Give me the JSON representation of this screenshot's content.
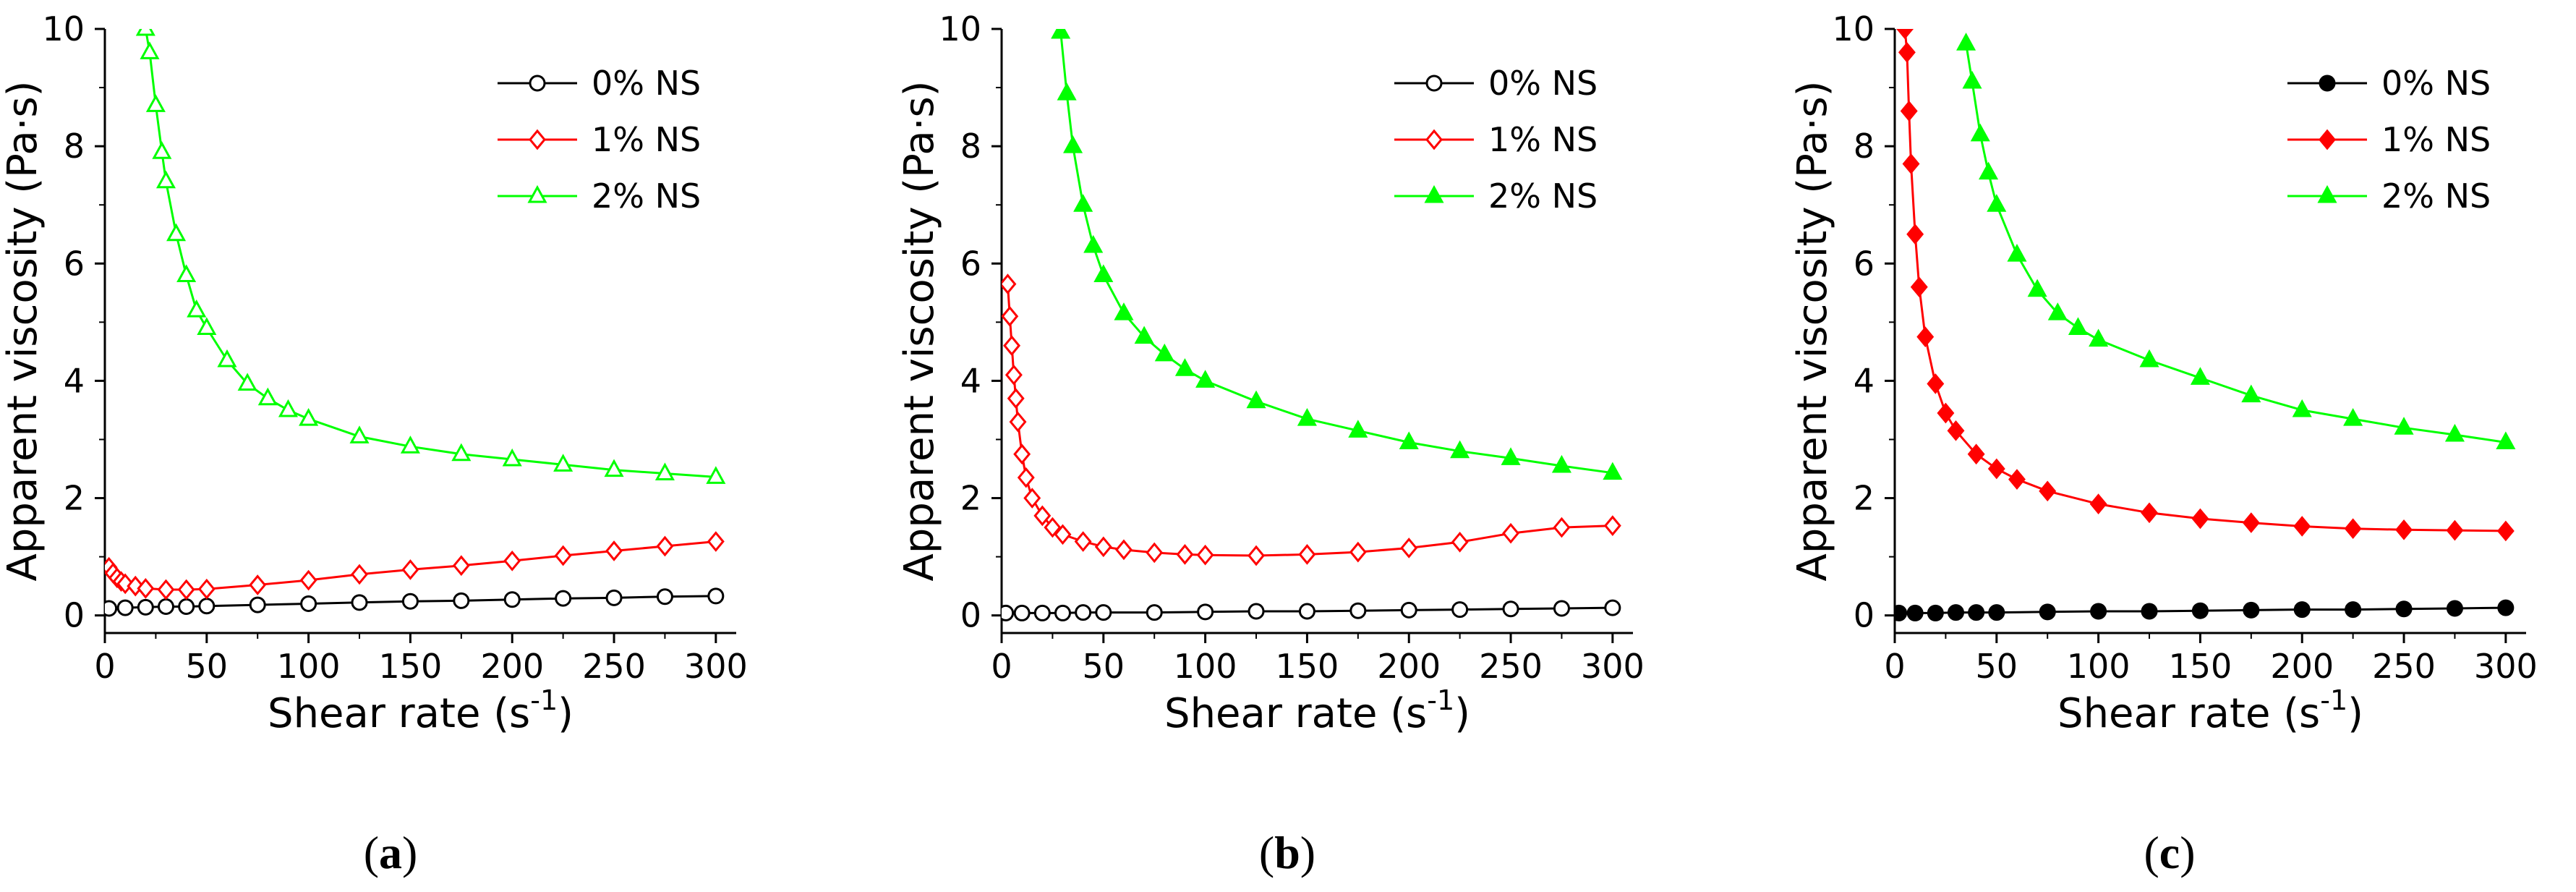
{
  "figure": {
    "panels": [
      {
        "label": "a"
      },
      {
        "label": "b"
      },
      {
        "label": "c"
      }
    ]
  },
  "chart_data": [
    {
      "type": "line",
      "panel": "a",
      "xlabel": "Shear rate (s",
      "xlabel_sup": "-1",
      "xlabel_close": ")",
      "ylabel": "Apparent viscosity (Pa·s)",
      "xlim": [
        0,
        310
      ],
      "ylim": [
        -0.3,
        10
      ],
      "xticks": [
        0,
        50,
        100,
        150,
        200,
        250,
        300
      ],
      "yticks": [
        0,
        2,
        4,
        6,
        8,
        10
      ],
      "legend_position": "top-right",
      "series": [
        {
          "name": "0% NS",
          "color": "#000000",
          "marker": "circle-open",
          "x": [
            2,
            10,
            20,
            30,
            40,
            50,
            75,
            100,
            125,
            150,
            175,
            200,
            225,
            250,
            275,
            300
          ],
          "y": [
            0.12,
            0.13,
            0.14,
            0.15,
            0.15,
            0.16,
            0.18,
            0.2,
            0.22,
            0.24,
            0.25,
            0.27,
            0.29,
            0.3,
            0.32,
            0.33
          ]
        },
        {
          "name": "1% NS",
          "color": "#ff0000",
          "marker": "diamond-open",
          "x": [
            2,
            4,
            6,
            8,
            10,
            15,
            20,
            30,
            40,
            50,
            75,
            100,
            125,
            150,
            175,
            200,
            225,
            250,
            275,
            300
          ],
          "y": [
            0.82,
            0.72,
            0.64,
            0.58,
            0.54,
            0.5,
            0.46,
            0.44,
            0.44,
            0.45,
            0.52,
            0.6,
            0.7,
            0.78,
            0.85,
            0.93,
            1.02,
            1.1,
            1.18,
            1.26
          ]
        },
        {
          "name": "2% NS",
          "color": "#00ff00",
          "marker": "triangle-open",
          "x": [
            20,
            22,
            25,
            28,
            30,
            35,
            40,
            45,
            50,
            60,
            70,
            80,
            90,
            100,
            125,
            150,
            175,
            200,
            225,
            250,
            275,
            300
          ],
          "y": [
            10.0,
            9.6,
            8.7,
            7.9,
            7.4,
            6.5,
            5.8,
            5.2,
            4.9,
            4.35,
            3.95,
            3.7,
            3.5,
            3.35,
            3.05,
            2.88,
            2.75,
            2.66,
            2.57,
            2.48,
            2.42,
            2.36
          ]
        }
      ]
    },
    {
      "type": "line",
      "panel": "b",
      "xlabel": "Shear rate (s",
      "xlabel_sup": "-1",
      "xlabel_close": ")",
      "ylabel": "Apparent viscosity (Pa·s)",
      "xlim": [
        0,
        310
      ],
      "ylim": [
        -0.3,
        10
      ],
      "xticks": [
        0,
        50,
        100,
        150,
        200,
        250,
        300
      ],
      "yticks": [
        0,
        2,
        4,
        6,
        8,
        10
      ],
      "legend_position": "top-right",
      "series": [
        {
          "name": "0% NS",
          "color": "#000000",
          "marker": "circle-open",
          "x": [
            2,
            10,
            20,
            30,
            40,
            50,
            75,
            100,
            125,
            150,
            175,
            200,
            225,
            250,
            275,
            300
          ],
          "y": [
            0.04,
            0.04,
            0.04,
            0.04,
            0.05,
            0.05,
            0.05,
            0.06,
            0.07,
            0.07,
            0.08,
            0.09,
            0.1,
            0.11,
            0.12,
            0.13
          ]
        },
        {
          "name": "1% NS",
          "color": "#ff0000",
          "marker": "diamond-open",
          "x": [
            3,
            4,
            5,
            6,
            7,
            8,
            10,
            12,
            15,
            20,
            25,
            30,
            40,
            50,
            60,
            75,
            90,
            100,
            125,
            150,
            175,
            200,
            225,
            250,
            275,
            300
          ],
          "y": [
            5.65,
            5.1,
            4.6,
            4.1,
            3.7,
            3.3,
            2.75,
            2.35,
            2.0,
            1.7,
            1.5,
            1.38,
            1.26,
            1.17,
            1.12,
            1.07,
            1.04,
            1.03,
            1.02,
            1.04,
            1.08,
            1.15,
            1.25,
            1.4,
            1.5,
            1.53
          ]
        },
        {
          "name": "2% NS",
          "color": "#00ff00",
          "marker": "triangle-filled",
          "x": [
            29,
            32,
            35,
            40,
            45,
            50,
            60,
            70,
            80,
            90,
            100,
            125,
            150,
            175,
            200,
            225,
            250,
            275,
            300
          ],
          "y": [
            9.95,
            8.9,
            8.0,
            7.0,
            6.3,
            5.8,
            5.15,
            4.75,
            4.45,
            4.2,
            4.0,
            3.65,
            3.35,
            3.15,
            2.95,
            2.8,
            2.68,
            2.55,
            2.43
          ]
        }
      ]
    },
    {
      "type": "line",
      "panel": "c",
      "xlabel": "Shear rate (s",
      "xlabel_sup": "-1",
      "xlabel_close": ")",
      "ylabel": "Apparent viscosity (Pa·s)",
      "xlim": [
        0,
        310
      ],
      "ylim": [
        -0.3,
        10
      ],
      "xticks": [
        0,
        50,
        100,
        150,
        200,
        250,
        300
      ],
      "yticks": [
        0,
        2,
        4,
        6,
        8,
        10
      ],
      "legend_position": "top-right",
      "series": [
        {
          "name": "0% NS",
          "color": "#000000",
          "marker": "circle-filled",
          "x": [
            2,
            10,
            20,
            30,
            40,
            50,
            75,
            100,
            125,
            150,
            175,
            200,
            225,
            250,
            275,
            300
          ],
          "y": [
            0.04,
            0.04,
            0.04,
            0.05,
            0.05,
            0.05,
            0.06,
            0.07,
            0.07,
            0.08,
            0.09,
            0.1,
            0.1,
            0.11,
            0.12,
            0.13
          ]
        },
        {
          "name": "1% NS",
          "color": "#ff0000",
          "marker": "diamond-filled",
          "x": [
            5,
            6,
            7,
            8,
            10,
            12,
            15,
            20,
            25,
            30,
            40,
            50,
            60,
            75,
            100,
            125,
            150,
            175,
            200,
            225,
            250,
            275,
            300
          ],
          "y": [
            10.0,
            9.6,
            8.6,
            7.7,
            6.5,
            5.6,
            4.75,
            3.95,
            3.45,
            3.15,
            2.75,
            2.5,
            2.32,
            2.12,
            1.9,
            1.75,
            1.65,
            1.58,
            1.52,
            1.48,
            1.46,
            1.45,
            1.44
          ]
        },
        {
          "name": "2% NS",
          "color": "#00ff00",
          "marker": "triangle-filled",
          "x": [
            35,
            38,
            42,
            46,
            50,
            60,
            70,
            80,
            90,
            100,
            125,
            150,
            175,
            200,
            225,
            250,
            275,
            300
          ],
          "y": [
            9.75,
            9.1,
            8.2,
            7.55,
            7.0,
            6.15,
            5.55,
            5.15,
            4.9,
            4.7,
            4.35,
            4.05,
            3.75,
            3.5,
            3.35,
            3.2,
            3.08,
            2.95
          ]
        }
      ]
    }
  ]
}
